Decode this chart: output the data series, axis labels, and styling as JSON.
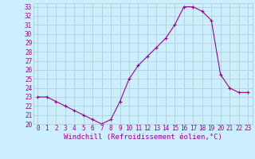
{
  "x": [
    0,
    1,
    2,
    3,
    4,
    5,
    6,
    7,
    8,
    9,
    10,
    11,
    12,
    13,
    14,
    15,
    16,
    17,
    18,
    19,
    20,
    21,
    22,
    23
  ],
  "y": [
    23.0,
    23.0,
    22.5,
    22.0,
    21.5,
    21.0,
    20.5,
    20.0,
    20.5,
    22.5,
    25.0,
    26.5,
    27.5,
    28.5,
    29.5,
    31.0,
    33.0,
    33.0,
    32.5,
    31.5,
    25.5,
    24.0,
    23.5,
    23.5
  ],
  "xlabel": "Windchill (Refroidissement éolien,°C)",
  "xlim": [
    -0.5,
    23.5
  ],
  "ylim": [
    20,
    33.4
  ],
  "yticks": [
    20,
    21,
    22,
    23,
    24,
    25,
    26,
    27,
    28,
    29,
    30,
    31,
    32,
    33
  ],
  "xticks": [
    0,
    1,
    2,
    3,
    4,
    5,
    6,
    7,
    8,
    9,
    10,
    11,
    12,
    13,
    14,
    15,
    16,
    17,
    18,
    19,
    20,
    21,
    22,
    23
  ],
  "line_color": "#990099",
  "marker": "+",
  "bg_color": "#cceeff",
  "grid_color": "#aacccc",
  "tick_color": "#990099",
  "label_color": "#990099",
  "font_size": 5.5,
  "xlabel_fontsize": 6.5
}
